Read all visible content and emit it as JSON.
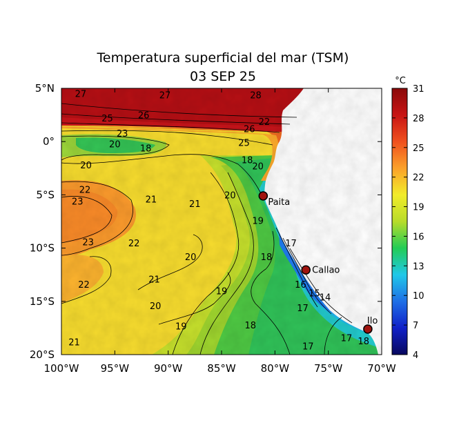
{
  "title": "Temperatura superficial del mar (TSM)",
  "date": "03 SEP 25",
  "lon_ticks": [
    "100°W",
    "95°W",
    "90°W",
    "85°W",
    "80°W",
    "75°W",
    "70°W"
  ],
  "lat_ticks": [
    "5°N",
    "0°",
    "5°S",
    "10°S",
    "15°S",
    "20°S"
  ],
  "lon_range": [
    -100,
    -70
  ],
  "lat_range": [
    -20,
    5
  ],
  "colorbar": {
    "unit": "°C",
    "ticks": [
      "31",
      "28",
      "25",
      "22",
      "19",
      "16",
      "13",
      "10",
      "7",
      "4"
    ],
    "range": [
      4,
      31
    ],
    "colors": [
      "#08085e",
      "#1020c8",
      "#1f6fe6",
      "#20c8e8",
      "#22cc55",
      "#b8dc2a",
      "#f2ec2a",
      "#fba12a",
      "#f0501e",
      "#c81414",
      "#8a0a0a"
    ]
  },
  "cities": [
    {
      "name": "Paita",
      "lon": -81.1,
      "lat": -5.1
    },
    {
      "name": "Callao",
      "lon": -77.1,
      "lat": -12.05
    },
    {
      "name": "Ilo",
      "lon": -71.3,
      "lat": -17.6
    }
  ],
  "isotherm_labels": [
    {
      "text": "27",
      "lon": -98.2,
      "lat": 4.5
    },
    {
      "text": "27",
      "lon": -90.3,
      "lat": 4.4
    },
    {
      "text": "28",
      "lon": -81.8,
      "lat": 4.4
    },
    {
      "text": "26",
      "lon": -92.3,
      "lat": 2.5
    },
    {
      "text": "25",
      "lon": -95.7,
      "lat": 2.2
    },
    {
      "text": "23",
      "lon": -94.3,
      "lat": 0.8
    },
    {
      "text": "20",
      "lon": -95.0,
      "lat": -0.2
    },
    {
      "text": "18",
      "lon": -92.1,
      "lat": -0.6
    },
    {
      "text": "20",
      "lon": -97.7,
      "lat": -2.2
    },
    {
      "text": "26",
      "lon": -82.4,
      "lat": 1.2
    },
    {
      "text": "25",
      "lon": -82.9,
      "lat": -0.1
    },
    {
      "text": "22",
      "lon": -81.0,
      "lat": 1.9
    },
    {
      "text": "20",
      "lon": -81.6,
      "lat": -2.3
    },
    {
      "text": "18",
      "lon": -82.6,
      "lat": -1.7
    },
    {
      "text": "22",
      "lon": -97.8,
      "lat": -4.5
    },
    {
      "text": "23",
      "lon": -98.5,
      "lat": -5.6
    },
    {
      "text": "21",
      "lon": -91.6,
      "lat": -5.4
    },
    {
      "text": "21",
      "lon": -87.5,
      "lat": -5.8
    },
    {
      "text": "20",
      "lon": -84.2,
      "lat": -5.0
    },
    {
      "text": "19",
      "lon": -81.6,
      "lat": -7.4
    },
    {
      "text": "23",
      "lon": -97.5,
      "lat": -9.4
    },
    {
      "text": "22",
      "lon": -93.2,
      "lat": -9.5
    },
    {
      "text": "20",
      "lon": -87.9,
      "lat": -10.8
    },
    {
      "text": "17",
      "lon": -78.5,
      "lat": -9.5
    },
    {
      "text": "18",
      "lon": -80.8,
      "lat": -10.8
    },
    {
      "text": "21",
      "lon": -91.3,
      "lat": -12.9
    },
    {
      "text": "22",
      "lon": -97.9,
      "lat": -13.4
    },
    {
      "text": "19",
      "lon": -85.0,
      "lat": -14.0
    },
    {
      "text": "16",
      "lon": -77.6,
      "lat": -13.4
    },
    {
      "text": "15",
      "lon": -76.3,
      "lat": -14.2
    },
    {
      "text": "14",
      "lon": -75.3,
      "lat": -14.6
    },
    {
      "text": "20",
      "lon": -91.2,
      "lat": -15.4
    },
    {
      "text": "17",
      "lon": -77.4,
      "lat": -15.6
    },
    {
      "text": "18",
      "lon": -82.3,
      "lat": -17.2
    },
    {
      "text": "19",
      "lon": -88.8,
      "lat": -17.3
    },
    {
      "text": "17",
      "lon": -73.3,
      "lat": -18.4
    },
    {
      "text": "18",
      "lon": -71.7,
      "lat": -18.7
    },
    {
      "text": "17",
      "lon": -76.9,
      "lat": -19.2
    },
    {
      "text": "21",
      "lon": -98.8,
      "lat": -18.8
    }
  ]
}
